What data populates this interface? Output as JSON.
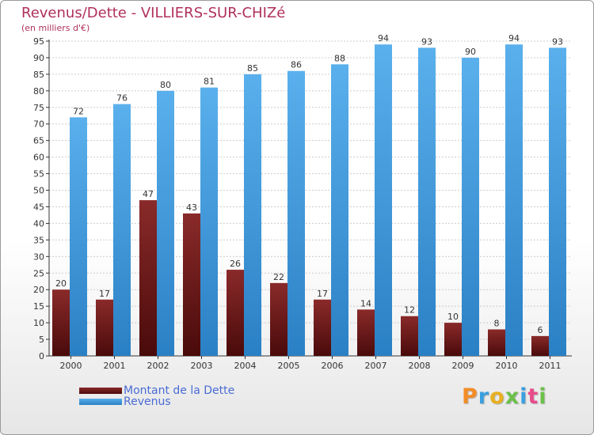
{
  "title": "Revenus/Dette - VILLIERS-SUR-CHIZé",
  "subtitle": "(en milliers d'€)",
  "logo": {
    "text": "Proxiti",
    "letters": [
      {
        "ch": "P",
        "color": "#f28c28"
      },
      {
        "ch": "r",
        "color": "#3aa0e0"
      },
      {
        "ch": "o",
        "color": "#e8b020"
      },
      {
        "ch": "x",
        "color": "#6cc04a"
      },
      {
        "ch": "i",
        "color": "#3aa0e0"
      },
      {
        "ch": "t",
        "color": "#e84a8a"
      },
      {
        "ch": "i",
        "color": "#6cc04a"
      }
    ]
  },
  "colors": {
    "debt_top": "#8a2a2a",
    "debt_bottom": "#4a0a0a",
    "revenue_top": "#5ab0ec",
    "revenue_bottom": "#2a80c4",
    "grid": "#cccccc",
    "axis": "#333333",
    "text": "#333333"
  },
  "chart_data": {
    "type": "bar",
    "title": "Revenus/Dette - VILLIERS-SUR-CHIZé",
    "ylabel": "(en milliers d'€)",
    "xlabel": "",
    "categories": [
      "2000",
      "2001",
      "2002",
      "2003",
      "2004",
      "2005",
      "2006",
      "2007",
      "2008",
      "2009",
      "2010",
      "2011"
    ],
    "series": [
      {
        "name": "Montant de la Dette",
        "values": [
          20,
          17,
          47,
          43,
          26,
          22,
          17,
          14,
          12,
          10,
          8,
          6
        ]
      },
      {
        "name": "Revenus",
        "values": [
          72,
          76,
          80,
          81,
          85,
          86,
          88,
          94,
          93,
          90,
          94,
          93
        ]
      }
    ],
    "ylim": [
      0,
      95
    ],
    "yticks": [
      0,
      5,
      10,
      15,
      20,
      25,
      30,
      35,
      40,
      45,
      50,
      55,
      60,
      65,
      70,
      75,
      80,
      85,
      90,
      95
    ],
    "grid": true,
    "legend": "bottom-left"
  }
}
